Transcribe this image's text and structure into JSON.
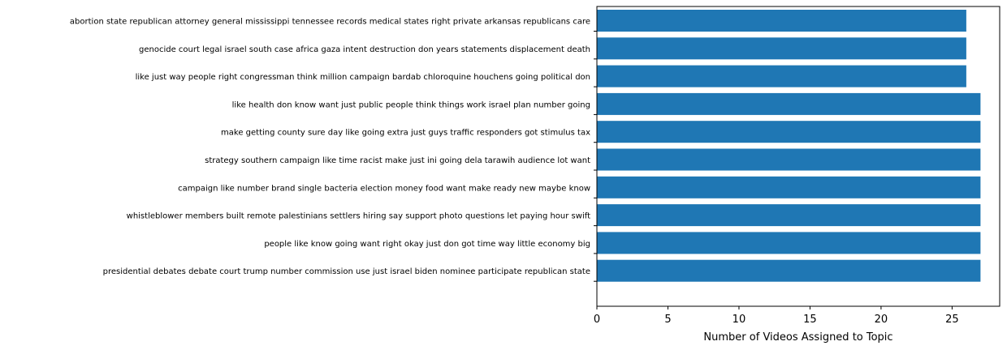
{
  "chart_data": {
    "type": "bar",
    "orientation": "horizontal",
    "categories": [
      "abortion state republican attorney general mississippi tennessee records medical states right private arkansas republicans care",
      "genocide court legal israel south case africa gaza intent destruction don years statements displacement death",
      "like just way people right congressman think million campaign bardab chloroquine houchens going political don",
      "like health don know want just public people think things work israel plan number going",
      "make getting county sure day like going extra just guys traffic responders got stimulus tax",
      "strategy southern campaign like time racist make just ini going dela tarawih audience lot want",
      "campaign like number brand single bacteria election money food want make ready new maybe know",
      "whistleblower members built remote palestinians settlers hiring say support photo questions let paying hour swift",
      "people like know going want right okay just don got time way little economy big",
      "presidential debates debate court trump number commission use just israel biden nominee participate republican state"
    ],
    "values": [
      26,
      26,
      26,
      27,
      27,
      27,
      27,
      27,
      27,
      27
    ],
    "title": "",
    "xlabel": "Number of Videos Assigned to Topic",
    "ylabel": "",
    "xlim": [
      0,
      28.35
    ],
    "xticks": [
      0,
      5,
      10,
      15,
      20,
      25
    ],
    "bar_color": "#1f77b4",
    "grid": false
  }
}
